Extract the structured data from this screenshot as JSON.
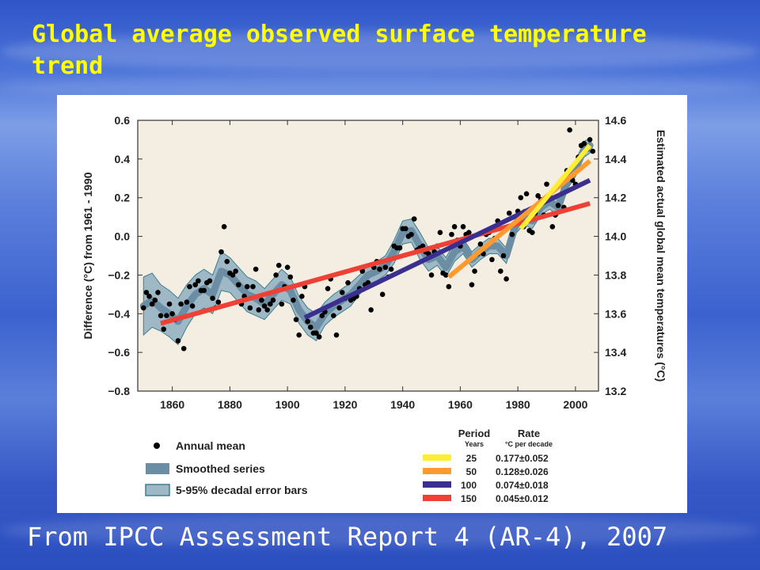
{
  "slide": {
    "title": "Global average observed surface temperature trend",
    "caption": "From IPCC Assessment Report 4 (AR-4), 2007"
  },
  "chart_data": {
    "type": "scatter",
    "title": "",
    "xlabel": "",
    "ylabel": "Difference (°C) from 1961 - 1990",
    "ylabel_right": "Estimated actual global mean temperatures (°C)",
    "xlim": [
      1848,
      2008
    ],
    "ylim": [
      -0.8,
      0.6
    ],
    "ylim_right": [
      13.2,
      14.6
    ],
    "x_ticks": [
      1860,
      1880,
      1900,
      1920,
      1940,
      1960,
      1980,
      2000
    ],
    "y_ticks": [
      -0.8,
      -0.6,
      -0.4,
      -0.2,
      0.0,
      0.2,
      0.4,
      0.6
    ],
    "y_tick_labels": [
      "−0.8",
      "−0.6",
      "−0.4",
      "−0.2",
      "0.0",
      "0.2",
      "0.4",
      "0.6"
    ],
    "y_right_ticks": [
      13.2,
      13.4,
      13.6,
      13.8,
      14.0,
      14.2,
      14.4,
      14.6
    ],
    "y_right_tick_labels": [
      "13.2",
      "13.4",
      "13.6",
      "13.8",
      "14.0",
      "14.2",
      "14.4",
      "14.6"
    ],
    "grid": false,
    "background": "#f4ede2",
    "annual_mean": {
      "name": "Annual mean",
      "color": "#000000",
      "x": [
        1850,
        1851,
        1852,
        1853,
        1854,
        1855,
        1856,
        1857,
        1858,
        1859,
        1860,
        1861,
        1862,
        1863,
        1864,
        1865,
        1866,
        1867,
        1868,
        1869,
        1870,
        1871,
        1872,
        1873,
        1874,
        1875,
        1876,
        1877,
        1878,
        1879,
        1880,
        1881,
        1882,
        1883,
        1884,
        1885,
        1886,
        1887,
        1888,
        1889,
        1890,
        1891,
        1892,
        1893,
        1894,
        1895,
        1896,
        1897,
        1898,
        1899,
        1900,
        1901,
        1902,
        1903,
        1904,
        1905,
        1906,
        1907,
        1908,
        1909,
        1910,
        1911,
        1912,
        1913,
        1914,
        1915,
        1916,
        1917,
        1918,
        1919,
        1920,
        1921,
        1922,
        1923,
        1924,
        1925,
        1926,
        1927,
        1928,
        1929,
        1930,
        1931,
        1932,
        1933,
        1934,
        1935,
        1936,
        1937,
        1938,
        1939,
        1940,
        1941,
        1942,
        1943,
        1944,
        1945,
        1946,
        1947,
        1948,
        1949,
        1950,
        1951,
        1952,
        1953,
        1954,
        1955,
        1956,
        1957,
        1958,
        1959,
        1960,
        1961,
        1962,
        1963,
        1964,
        1965,
        1966,
        1967,
        1968,
        1969,
        1970,
        1971,
        1972,
        1973,
        1974,
        1975,
        1976,
        1977,
        1978,
        1979,
        1980,
        1981,
        1982,
        1983,
        1984,
        1985,
        1986,
        1987,
        1988,
        1989,
        1990,
        1991,
        1992,
        1993,
        1994,
        1995,
        1996,
        1997,
        1998,
        1999,
        2000,
        2001,
        2002,
        2003,
        2004,
        2005,
        2006
      ],
      "y": [
        -0.37,
        -0.29,
        -0.31,
        -0.35,
        -0.33,
        -0.29,
        -0.41,
        -0.48,
        -0.41,
        -0.35,
        -0.4,
        -0.43,
        -0.54,
        -0.35,
        -0.58,
        -0.34,
        -0.26,
        -0.36,
        -0.25,
        -0.23,
        -0.28,
        -0.28,
        -0.24,
        -0.23,
        -0.32,
        -0.37,
        -0.34,
        -0.08,
        0.05,
        -0.13,
        -0.19,
        -0.2,
        -0.18,
        -0.25,
        -0.35,
        -0.31,
        -0.26,
        -0.37,
        -0.26,
        -0.17,
        -0.38,
        -0.33,
        -0.36,
        -0.38,
        -0.35,
        -0.33,
        -0.2,
        -0.15,
        -0.35,
        -0.26,
        -0.16,
        -0.21,
        -0.33,
        -0.43,
        -0.51,
        -0.31,
        -0.26,
        -0.44,
        -0.47,
        -0.5,
        -0.5,
        -0.52,
        -0.41,
        -0.39,
        -0.27,
        -0.22,
        -0.41,
        -0.51,
        -0.37,
        -0.29,
        -0.32,
        -0.24,
        -0.33,
        -0.32,
        -0.31,
        -0.27,
        -0.18,
        -0.25,
        -0.24,
        -0.38,
        -0.16,
        -0.13,
        -0.17,
        -0.3,
        -0.16,
        -0.21,
        -0.17,
        -0.05,
        -0.06,
        -0.06,
        0.04,
        0.04,
        0.0,
        0.01,
        0.09,
        -0.07,
        -0.06,
        -0.05,
        -0.08,
        -0.09,
        -0.2,
        -0.08,
        -0.05,
        0.02,
        -0.19,
        -0.2,
        -0.26,
        0.01,
        0.05,
        -0.02,
        -0.05,
        0.05,
        0.01,
        0.02,
        -0.25,
        -0.18,
        -0.09,
        -0.04,
        -0.09,
        0.01,
        0.02,
        -0.12,
        -0.01,
        0.08,
        -0.18,
        -0.1,
        -0.22,
        0.12,
        0.01,
        0.07,
        0.13,
        0.2,
        0.05,
        0.22,
        0.03,
        0.02,
        0.12,
        0.21,
        0.19,
        0.11,
        0.27,
        0.2,
        0.05,
        0.11,
        0.16,
        0.27,
        0.15,
        0.34,
        0.55,
        0.29,
        0.27,
        0.41,
        0.47,
        0.48,
        0.45,
        0.5,
        0.44
      ]
    },
    "smoothed_series": {
      "name": "Smoothed series",
      "color": "#6b8ea4",
      "x": [
        1850,
        1853,
        1856,
        1859,
        1862,
        1865,
        1868,
        1871,
        1874,
        1877,
        1880,
        1883,
        1886,
        1889,
        1892,
        1895,
        1898,
        1901,
        1904,
        1907,
        1910,
        1913,
        1916,
        1919,
        1922,
        1925,
        1928,
        1931,
        1934,
        1937,
        1940,
        1943,
        1946,
        1949,
        1952,
        1955,
        1958,
        1961,
        1964,
        1967,
        1970,
        1973,
        1976,
        1979,
        1982,
        1985,
        1988,
        1991,
        1994,
        1997,
        2000,
        2003,
        2005
      ],
      "y": [
        -0.36,
        -0.33,
        -0.37,
        -0.4,
        -0.44,
        -0.36,
        -0.3,
        -0.27,
        -0.3,
        -0.18,
        -0.2,
        -0.25,
        -0.3,
        -0.32,
        -0.35,
        -0.3,
        -0.25,
        -0.28,
        -0.38,
        -0.44,
        -0.47,
        -0.4,
        -0.36,
        -0.33,
        -0.3,
        -0.25,
        -0.2,
        -0.18,
        -0.15,
        -0.08,
        0.02,
        0.03,
        -0.05,
        -0.12,
        -0.1,
        -0.16,
        -0.08,
        -0.05,
        -0.12,
        -0.08,
        -0.05,
        -0.05,
        -0.1,
        0.05,
        0.1,
        0.08,
        0.15,
        0.18,
        0.15,
        0.28,
        0.35,
        0.45,
        0.47
      ]
    },
    "error_band": {
      "name": "5-95% decadal error bars",
      "color": "#9fb8c6",
      "half_width": [
        0.15,
        0.14,
        0.12,
        0.12,
        0.12,
        0.11,
        0.1,
        0.1,
        0.1,
        0.1,
        0.09,
        0.09,
        0.09,
        0.09,
        0.08,
        0.08,
        0.08,
        0.07,
        0.07,
        0.07,
        0.07,
        0.06,
        0.06,
        0.06,
        0.06,
        0.05,
        0.05,
        0.05,
        0.05,
        0.06,
        0.06,
        0.06,
        0.07,
        0.06,
        0.05,
        0.05,
        0.05,
        0.04,
        0.04,
        0.04,
        0.04,
        0.04,
        0.04,
        0.04,
        0.04,
        0.04,
        0.04,
        0.04,
        0.04,
        0.04,
        0.04,
        0.04,
        0.04
      ]
    },
    "trend_header": {
      "period": "Period",
      "period_units": "Years",
      "rate": "Rate",
      "rate_units": "°C per decade"
    },
    "trends": [
      {
        "years": "25",
        "rate": "0.177±0.052",
        "color": "#ffee33",
        "x": [
          1981,
          2005
        ],
        "y": [
          0.04,
          0.47
        ]
      },
      {
        "years": "50",
        "rate": "0.128±0.026",
        "color": "#ff9a2e",
        "x": [
          1956,
          2005
        ],
        "y": [
          -0.21,
          0.39
        ]
      },
      {
        "years": "100",
        "rate": "0.074±0.018",
        "color": "#3a2f8f",
        "x": [
          1906,
          2005
        ],
        "y": [
          -0.42,
          0.29
        ]
      },
      {
        "years": "150",
        "rate": "0.045±0.012",
        "color": "#ee4035",
        "x": [
          1856,
          2005
        ],
        "y": [
          -0.45,
          0.17
        ]
      }
    ]
  }
}
